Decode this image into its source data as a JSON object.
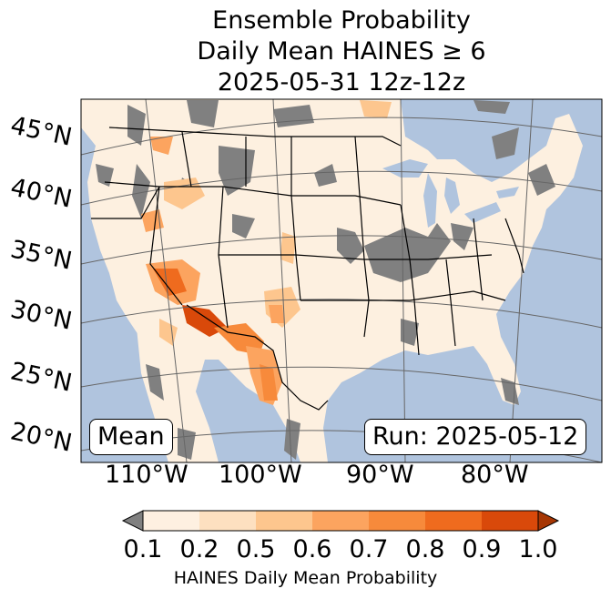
{
  "title": {
    "line1": "Ensemble Probability",
    "line2": "Daily Mean HAINES ≥ 6",
    "line3": "2025-05-31 12z-12z"
  },
  "map": {
    "lat_labels": [
      "45°N",
      "40°N",
      "35°N",
      "30°N",
      "25°N",
      "20°N"
    ],
    "lon_labels": [
      "110°W",
      "100°W",
      "90°W",
      "80°W"
    ],
    "stat_box": "Mean",
    "run_box": "Run: 2025-05-12",
    "colors": {
      "ocean": "#b0c4de",
      "below_min": "#808080",
      "land_base": "#fdf0e0"
    }
  },
  "colorbar": {
    "ticks": [
      "0.1",
      "0.2",
      "0.5",
      "0.6",
      "0.7",
      "0.8",
      "0.9",
      "1.0"
    ],
    "label": "HAINES Daily Mean Probability",
    "colors": [
      "#fef0e1",
      "#fde0c0",
      "#fdc68e",
      "#fca45f",
      "#f78a3b",
      "#ef6b1e",
      "#d9490a",
      "#a63603"
    ],
    "under_color": "#808080",
    "over_color": "#a63603"
  }
}
